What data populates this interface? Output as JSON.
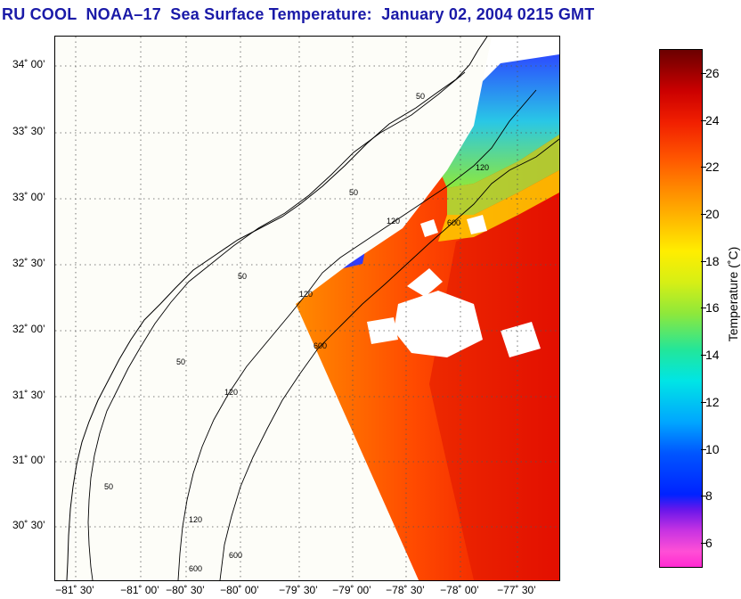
{
  "title": "RU COOL  NOAA–17  Sea Surface Temperature:  January 02, 2004 0215 GMT",
  "latitude_labels": [
    "34˚ 00’",
    "33˚ 30’",
    "33˚ 00’",
    "32˚ 30’",
    "32˚ 00’",
    "31˚ 30’",
    "31˚ 00’",
    "30˚ 30’"
  ],
  "longitude_labels": [
    "−81˚ 30’",
    "−81˚ 00’",
    "−80˚ 30’",
    "−80˚ 00’",
    "−79˚ 30’",
    "−79˚ 00’",
    "−78˚ 30’",
    "−78˚ 00’",
    "−77˚ 30’"
  ],
  "contour_labels": [
    "50",
    "50",
    "50",
    "50",
    "50",
    "120",
    "120",
    "120",
    "120",
    "120",
    "600",
    "600",
    "600",
    "600"
  ],
  "colorbar": {
    "label": "Temperature (˚C)",
    "ticks": [
      "26",
      "24",
      "22",
      "20",
      "18",
      "16",
      "14",
      "12",
      "10",
      "8",
      "6"
    ],
    "range": [
      5,
      27
    ]
  },
  "colors": {
    "title": "#1a1aa8",
    "land": "#ffffff",
    "no_data": "#fdfdf5",
    "cloud": "#ffffff"
  }
}
